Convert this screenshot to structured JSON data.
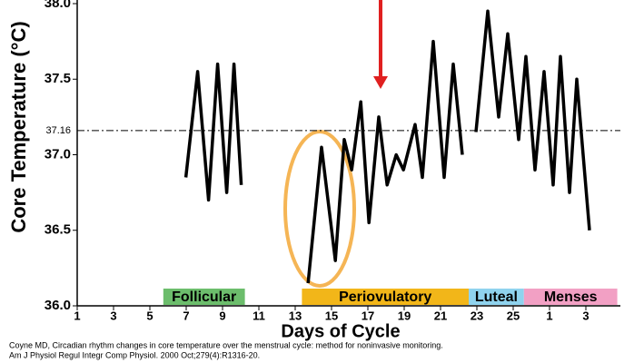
{
  "chart_data": {
    "type": "line",
    "y_label": "Core Temperature (°C)",
    "x_label": "Days of Cycle",
    "citation": [
      "Coyne MD, Circadian rhythm changes in core temperature over the menstrual cycle: method for noninvasive monitoring.",
      "Am J Physiol Regul Integr Comp Physiol. 2000 Oct;279(4):R1316-20."
    ],
    "xlim": [
      1,
      30.9
    ],
    "ylim": [
      36.0,
      38.0
    ],
    "yticks": [
      {
        "value": 36.0,
        "label": "36.0"
      },
      36.5,
      {
        "value": 37.0,
        "label": "37.0"
      },
      37.5,
      {
        "value": 38.0,
        "label": "38.0"
      }
    ],
    "xticks": [
      1,
      3,
      5,
      7,
      9,
      11,
      13,
      15,
      17,
      19,
      21,
      23,
      25,
      {
        "value": 27,
        "label": "1"
      },
      {
        "value": 29,
        "label": "3"
      }
    ],
    "reference_line": 37.16,
    "phases": [
      {
        "name": "Follicular",
        "start": 5.74,
        "end": 10.23,
        "color": "#6cbd6c"
      },
      {
        "name": "Periovulatory",
        "start": 13.37,
        "end": 22.55,
        "color": "#f2b619"
      },
      {
        "name": "Luteal",
        "start": 22.55,
        "end": 25.59,
        "color": "#8fd3ee"
      },
      {
        "name": "Menses",
        "start": 25.59,
        "end": 30.73,
        "color": "#f2a0c4"
      }
    ],
    "series": [
      {
        "color": "#000000",
        "x": [
          6.98,
          7.63,
          8.23,
          8.73,
          9.23,
          9.63,
          10.03,
          null,
          13.71,
          14.45,
          15.21,
          15.7,
          16.11,
          16.61,
          17.06,
          17.6,
          18.06,
          18.56,
          18.96,
          19.6,
          20.0,
          20.6,
          21.2,
          21.7,
          22.2,
          null,
          22.95,
          23.6,
          24.2,
          24.7,
          25.3,
          25.7,
          26.2,
          26.7,
          27.2,
          27.6,
          28.1,
          28.5,
          29.2
        ],
        "values": [
          36.85,
          37.55,
          36.7,
          37.6,
          36.75,
          37.6,
          36.8,
          null,
          36.15,
          37.05,
          36.3,
          37.1,
          36.9,
          37.35,
          36.55,
          37.25,
          36.8,
          37.0,
          36.9,
          37.2,
          36.85,
          37.75,
          36.85,
          37.6,
          37.0,
          null,
          37.15,
          37.95,
          37.25,
          37.8,
          37.1,
          37.65,
          36.9,
          37.55,
          36.8,
          37.65,
          36.75,
          37.5,
          36.5
        ]
      }
    ]
  }
}
